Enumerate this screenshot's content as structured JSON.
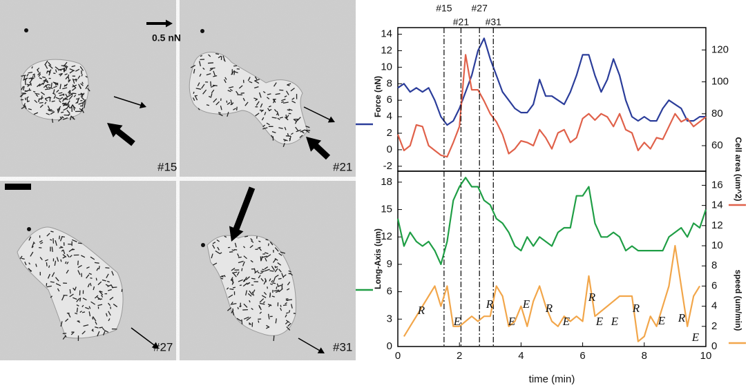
{
  "images": {
    "scale": "0.5 nN",
    "labels": [
      "#15",
      "#21",
      "#27",
      "#31"
    ]
  },
  "chart_data": [
    {
      "type": "line",
      "ylabel": "Force (nN)",
      "y2label": "Cell area (um^2)",
      "x": [
        0,
        0.2,
        0.4,
        0.6,
        0.8,
        1,
        1.2,
        1.4,
        1.6,
        1.8,
        2,
        2.2,
        2.4,
        2.6,
        2.8,
        3,
        3.2,
        3.4,
        3.6,
        3.8,
        4,
        4.2,
        4.4,
        4.6,
        4.8,
        5,
        5.2,
        5.4,
        5.6,
        5.8,
        6,
        6.2,
        6.4,
        6.6,
        6.8,
        7,
        7.2,
        7.4,
        7.6,
        7.8,
        8,
        8.2,
        8.4,
        8.6,
        8.8,
        9,
        9.2,
        9.4,
        9.6,
        9.8,
        10
      ],
      "xlim": [
        0,
        10
      ],
      "ylim": [
        -2.6,
        14.8
      ],
      "yticks": [
        -2,
        0,
        2,
        4,
        6,
        8,
        10,
        12,
        14
      ],
      "y2lim": [
        44,
        134
      ],
      "y2ticks": [
        60,
        80,
        100,
        120
      ],
      "markers": [
        {
          "value": 1.5,
          "label": "#15"
        },
        {
          "value": 2.05,
          "label": "#21"
        },
        {
          "value": 2.65,
          "label": "#27"
        },
        {
          "value": 3.1,
          "label": "#31"
        }
      ],
      "series": [
        {
          "name": "Force (nN)",
          "color": "#2b3d9a",
          "axis": "y",
          "values": [
            7.5,
            8,
            7,
            7.5,
            7,
            7.5,
            6,
            4,
            3,
            3.5,
            5,
            7,
            9,
            12,
            13.5,
            11,
            9,
            7,
            6,
            5,
            4.5,
            4.5,
            5.5,
            8.5,
            6.5,
            6.5,
            6,
            5.5,
            7,
            9,
            11.5,
            11.5,
            9,
            7,
            8.5,
            11,
            9,
            6,
            4,
            3.5,
            4,
            3.5,
            3.5,
            5,
            6,
            5.5,
            5,
            3.5,
            3.5,
            4,
            4
          ]
        },
        {
          "name": "Cell area (um^2)",
          "color": "#e0614a",
          "axis": "y2",
          "values": [
            67,
            57,
            60,
            73,
            72,
            60,
            57,
            54,
            53,
            62,
            72,
            117,
            95,
            95,
            88,
            80,
            75,
            67,
            55,
            58,
            63,
            62,
            60,
            70,
            65,
            58,
            68,
            70,
            62,
            65,
            77,
            80,
            76,
            80,
            78,
            72,
            80,
            70,
            68,
            57,
            62,
            58,
            65,
            64,
            72,
            80,
            75,
            77,
            72,
            75,
            78
          ]
        }
      ]
    },
    {
      "type": "line",
      "ylabel": "Long-Axis (um)",
      "y2label": "speed (um/min)",
      "xlabel": "time (min)",
      "x": [
        0,
        0.2,
        0.4,
        0.6,
        0.8,
        1,
        1.2,
        1.4,
        1.6,
        1.8,
        2,
        2.2,
        2.4,
        2.6,
        2.8,
        3,
        3.2,
        3.4,
        3.6,
        3.8,
        4,
        4.2,
        4.4,
        4.6,
        4.8,
        5,
        5.2,
        5.4,
        5.6,
        5.8,
        6,
        6.2,
        6.4,
        6.6,
        6.8,
        7,
        7.2,
        7.4,
        7.6,
        7.8,
        8,
        8.2,
        8.4,
        8.6,
        8.8,
        9,
        9.2,
        9.4,
        9.6,
        9.8,
        10
      ],
      "xlim": [
        0,
        10
      ],
      "xticks": [
        0,
        2,
        4,
        6,
        8,
        10
      ],
      "ylim": [
        0,
        19.2
      ],
      "yticks": [
        0,
        3,
        6,
        9,
        12,
        15,
        18
      ],
      "y2lim": [
        0,
        17.4
      ],
      "y2ticks": [
        0,
        2,
        4,
        6,
        8,
        10,
        12,
        14,
        16
      ],
      "annotations": [
        "R",
        "E",
        "R",
        "E",
        "E",
        "R",
        "E",
        "R",
        "E",
        "E",
        "R",
        "E",
        "R",
        "E"
      ],
      "series": [
        {
          "name": "Long-Axis (um)",
          "color": "#1f9e45",
          "axis": "y",
          "values": [
            14,
            11,
            12.5,
            11.5,
            11,
            11.5,
            10.5,
            9,
            11.5,
            16,
            17.5,
            18.5,
            17.5,
            17.5,
            16,
            15.5,
            14,
            13.5,
            12.5,
            11,
            10.5,
            12,
            11,
            12,
            11.5,
            11,
            12.5,
            13,
            13,
            16.5,
            16.5,
            17.5,
            13.5,
            12,
            12,
            12.5,
            12,
            10.5,
            11,
            10.5,
            10.5,
            10.5,
            10.5,
            10.5,
            12,
            12.5,
            13,
            12,
            13.5,
            13,
            15
          ]
        },
        {
          "name": "speed (um/min)",
          "color": "#f2a64a",
          "axis": "y2",
          "values": [
            null,
            1,
            2,
            3,
            4,
            5,
            6,
            4,
            6,
            2,
            2,
            2.5,
            3,
            2.5,
            3,
            3,
            6,
            5,
            2,
            2.5,
            4,
            2,
            4.5,
            6,
            4,
            2.5,
            2,
            3,
            2.5,
            3,
            2.5,
            7,
            3,
            3.5,
            4,
            4.5,
            5,
            5,
            5,
            0.5,
            1,
            3,
            2,
            4,
            6,
            10,
            6,
            2,
            5,
            6,
            null
          ]
        }
      ]
    }
  ]
}
